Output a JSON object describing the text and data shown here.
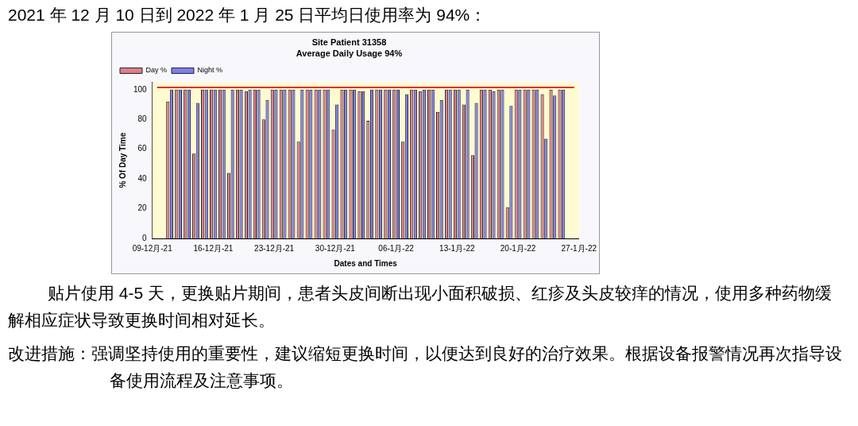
{
  "chart_data": {
    "type": "bar",
    "title": "Site Patient 31358",
    "subtitle": "Average Daily Usage 94%",
    "xlabel": "Dates and Times",
    "ylabel": "% Of Day Time",
    "x": [
      "2021-12-11",
      "2021-12-12",
      "2021-12-13",
      "2021-12-14",
      "2021-12-15",
      "2021-12-16",
      "2021-12-17",
      "2021-12-18",
      "2021-12-19",
      "2021-12-20",
      "2021-12-21",
      "2021-12-22",
      "2021-12-23",
      "2021-12-24",
      "2021-12-25",
      "2021-12-26",
      "2021-12-27",
      "2021-12-28",
      "2021-12-29",
      "2021-12-30",
      "2021-12-31",
      "2022-01-01",
      "2022-01-02",
      "2022-01-03",
      "2022-01-04",
      "2022-01-05",
      "2022-01-06",
      "2022-01-07",
      "2022-01-08",
      "2022-01-09",
      "2022-01-10",
      "2022-01-11",
      "2022-01-12",
      "2022-01-13",
      "2022-01-14",
      "2022-01-15",
      "2022-01-16",
      "2022-01-17",
      "2022-01-18",
      "2022-01-19",
      "2022-01-20",
      "2022-01-21",
      "2022-01-22",
      "2022-01-23",
      "2022-01-24",
      "2022-01-25"
    ],
    "series": [
      {
        "name": "Day %",
        "color": "#e08080",
        "values": [
          92,
          100,
          100,
          57,
          100,
          100,
          100,
          44,
          100,
          99,
          100,
          80,
          100,
          100,
          100,
          65,
          100,
          100,
          100,
          73,
          100,
          100,
          99,
          79,
          100,
          100,
          100,
          65,
          100,
          99,
          100,
          85,
          100,
          100,
          90,
          56,
          100,
          100,
          100,
          21,
          100,
          100,
          100,
          97,
          100,
          100
        ]
      },
      {
        "name": "Night %",
        "color": "#8080e0",
        "values": [
          100,
          100,
          100,
          91,
          100,
          100,
          100,
          100,
          100,
          100,
          100,
          93,
          100,
          100,
          100,
          100,
          100,
          100,
          100,
          90,
          100,
          100,
          99,
          100,
          100,
          100,
          100,
          97,
          100,
          100,
          100,
          93,
          100,
          100,
          100,
          91,
          100,
          99,
          100,
          89,
          100,
          100,
          100,
          67,
          96,
          100
        ]
      }
    ],
    "xlim": [
      "2021-12-09",
      "2022-01-27"
    ],
    "xticks": [
      {
        "value": "2021-12-09",
        "label": "09-12月-21"
      },
      {
        "value": "2021-12-16",
        "label": "16-12月-21"
      },
      {
        "value": "2021-12-23",
        "label": "23-12月-21"
      },
      {
        "value": "2021-12-30",
        "label": "30-12月-21"
      },
      {
        "value": "2022-01-06",
        "label": "06-1月-22"
      },
      {
        "value": "2022-01-13",
        "label": "13-1月-22"
      },
      {
        "value": "2022-01-20",
        "label": "20-1月-22"
      },
      {
        "value": "2022-01-27",
        "label": "27-1月-22"
      }
    ],
    "ylim": [
      0,
      105
    ],
    "yticks": [
      0,
      20,
      40,
      60,
      80,
      100
    ],
    "ref_lines": [
      {
        "axis": "y",
        "value": 101.5,
        "color": "#e03030"
      }
    ],
    "legend": "top left",
    "annotations": [
      "2021 年 12 月 10 日到 2022 年 1 月 25 日平均日使用率为 94%：",
      "贴片使用 4-5 天，更换贴片期间，患者头皮间断出现小面积破损、红疹及头皮较痒的情况，使用多种药物缓解相应症状导致更换时间相对延长。",
      "改进措施：强调坚持使用的重要性，建议缩短更换时间，以便达到良好的治疗效果。根据设备报警情况再次指导设备使用流程及注意事项。"
    ]
  }
}
